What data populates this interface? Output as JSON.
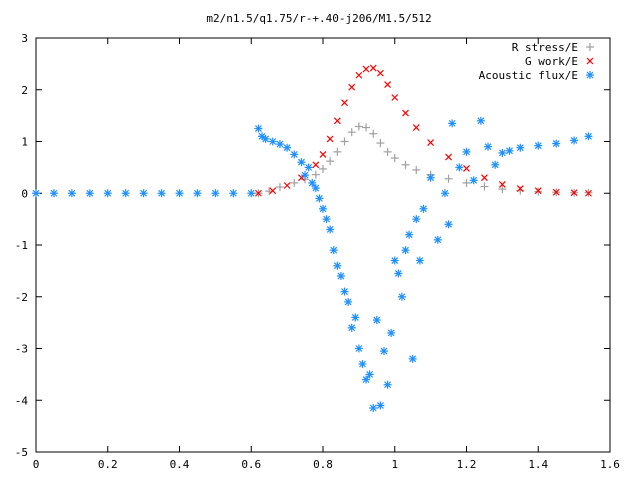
{
  "chart_data": {
    "type": "scatter",
    "title": "m2/n1.5/q1.75/r-+.40-j206/M1.5/512",
    "xlabel": "",
    "ylabel": "",
    "xlim": [
      0,
      1.6
    ],
    "ylim": [
      -5,
      3
    ],
    "x_ticks": [
      "0",
      "0.2",
      "0.4",
      "0.6",
      "0.8",
      "1",
      "1.2",
      "1.4",
      "1.6"
    ],
    "y_ticks": [
      "3",
      "2",
      "1",
      "0",
      "-1",
      "-2",
      "-3",
      "-4",
      "-5"
    ],
    "legend_position": "top-right",
    "grid": false,
    "series": [
      {
        "name": "R stress/E",
        "marker": "plus",
        "color": "#a0a0a0",
        "points": [
          [
            0.62,
            0.0
          ],
          [
            0.65,
            0.04
          ],
          [
            0.68,
            0.12
          ],
          [
            0.72,
            0.2
          ],
          [
            0.75,
            0.27
          ],
          [
            0.78,
            0.36
          ],
          [
            0.8,
            0.47
          ],
          [
            0.82,
            0.62
          ],
          [
            0.84,
            0.8
          ],
          [
            0.86,
            1.0
          ],
          [
            0.88,
            1.18
          ],
          [
            0.9,
            1.29
          ],
          [
            0.92,
            1.27
          ],
          [
            0.94,
            1.15
          ],
          [
            0.96,
            0.97
          ],
          [
            0.98,
            0.8
          ],
          [
            1.0,
            0.68
          ],
          [
            1.03,
            0.55
          ],
          [
            1.06,
            0.45
          ],
          [
            1.1,
            0.36
          ],
          [
            1.15,
            0.28
          ],
          [
            1.2,
            0.2
          ],
          [
            1.25,
            0.13
          ],
          [
            1.3,
            0.08
          ],
          [
            1.35,
            0.05
          ],
          [
            1.4,
            0.03
          ],
          [
            1.45,
            0.02
          ],
          [
            1.5,
            0.01
          ],
          [
            1.54,
            0.01
          ]
        ]
      },
      {
        "name": "G work/E",
        "marker": "cross",
        "color": "#ff0000",
        "points": [
          [
            0.62,
            0.0
          ],
          [
            0.66,
            0.05
          ],
          [
            0.7,
            0.15
          ],
          [
            0.74,
            0.3
          ],
          [
            0.78,
            0.55
          ],
          [
            0.8,
            0.75
          ],
          [
            0.82,
            1.05
          ],
          [
            0.84,
            1.4
          ],
          [
            0.86,
            1.75
          ],
          [
            0.88,
            2.05
          ],
          [
            0.9,
            2.28
          ],
          [
            0.92,
            2.4
          ],
          [
            0.94,
            2.42
          ],
          [
            0.96,
            2.32
          ],
          [
            0.98,
            2.1
          ],
          [
            1.0,
            1.85
          ],
          [
            1.03,
            1.55
          ],
          [
            1.06,
            1.27
          ],
          [
            1.1,
            0.98
          ],
          [
            1.15,
            0.7
          ],
          [
            1.2,
            0.48
          ],
          [
            1.25,
            0.3
          ],
          [
            1.3,
            0.17
          ],
          [
            1.35,
            0.09
          ],
          [
            1.4,
            0.05
          ],
          [
            1.45,
            0.02
          ],
          [
            1.5,
            0.01
          ],
          [
            1.54,
            0.0
          ]
        ]
      },
      {
        "name": "Acoustic flux/E",
        "marker": "star",
        "color": "#1e90ff",
        "points": [
          [
            0.0,
            0.0
          ],
          [
            0.05,
            0.0
          ],
          [
            0.1,
            0.0
          ],
          [
            0.15,
            0.0
          ],
          [
            0.2,
            0.0
          ],
          [
            0.25,
            0.0
          ],
          [
            0.3,
            0.0
          ],
          [
            0.35,
            0.0
          ],
          [
            0.4,
            0.0
          ],
          [
            0.45,
            0.0
          ],
          [
            0.5,
            0.0
          ],
          [
            0.55,
            0.0
          ],
          [
            0.6,
            0.0
          ],
          [
            0.62,
            1.25
          ],
          [
            0.63,
            1.1
          ],
          [
            0.64,
            1.05
          ],
          [
            0.66,
            1.0
          ],
          [
            0.68,
            0.95
          ],
          [
            0.7,
            0.88
          ],
          [
            0.72,
            0.75
          ],
          [
            0.74,
            0.6
          ],
          [
            0.75,
            0.35
          ],
          [
            0.76,
            0.5
          ],
          [
            0.77,
            0.2
          ],
          [
            0.78,
            0.1
          ],
          [
            0.79,
            -0.1
          ],
          [
            0.8,
            -0.3
          ],
          [
            0.81,
            -0.5
          ],
          [
            0.82,
            -0.7
          ],
          [
            0.83,
            -1.1
          ],
          [
            0.84,
            -1.4
          ],
          [
            0.85,
            -1.6
          ],
          [
            0.86,
            -1.9
          ],
          [
            0.87,
            -2.1
          ],
          [
            0.88,
            -2.6
          ],
          [
            0.89,
            -2.4
          ],
          [
            0.9,
            -3.0
          ],
          [
            0.91,
            -3.3
          ],
          [
            0.92,
            -3.6
          ],
          [
            0.93,
            -3.5
          ],
          [
            0.94,
            -4.15
          ],
          [
            0.95,
            -2.45
          ],
          [
            0.96,
            -4.1
          ],
          [
            0.97,
            -3.05
          ],
          [
            0.98,
            -3.7
          ],
          [
            0.99,
            -2.7
          ],
          [
            1.0,
            -1.3
          ],
          [
            1.01,
            -1.55
          ],
          [
            1.02,
            -2.0
          ],
          [
            1.03,
            -1.1
          ],
          [
            1.04,
            -0.8
          ],
          [
            1.05,
            -3.2
          ],
          [
            1.06,
            -0.5
          ],
          [
            1.07,
            -1.3
          ],
          [
            1.08,
            -0.3
          ],
          [
            1.1,
            0.3
          ],
          [
            1.12,
            -0.9
          ],
          [
            1.14,
            0.0
          ],
          [
            1.15,
            -0.6
          ],
          [
            1.16,
            1.35
          ],
          [
            1.18,
            0.5
          ],
          [
            1.2,
            0.8
          ],
          [
            1.22,
            0.25
          ],
          [
            1.24,
            1.4
          ],
          [
            1.26,
            0.9
          ],
          [
            1.28,
            0.55
          ],
          [
            1.3,
            0.78
          ],
          [
            1.32,
            0.82
          ],
          [
            1.35,
            0.88
          ],
          [
            1.4,
            0.92
          ],
          [
            1.45,
            0.96
          ],
          [
            1.5,
            1.02
          ],
          [
            1.54,
            1.1
          ]
        ]
      }
    ]
  }
}
